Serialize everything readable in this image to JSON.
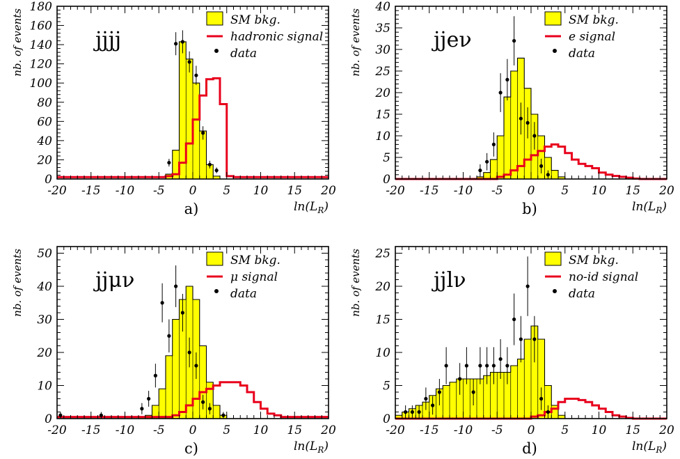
{
  "figure": {
    "colors": {
      "bkg_fill": "#ffff00",
      "signal": "#e8001c",
      "data": "#000000",
      "axes": "#000000"
    }
  },
  "chart_data": [
    {
      "type": "histogram",
      "panel_label": "a)",
      "channel_label": "jjjj",
      "xlabel": "ln(L_R)",
      "ylabel": "nb. of events",
      "xlim": [
        -20,
        20
      ],
      "ylim": [
        0,
        180
      ],
      "xticks": [
        -20,
        -15,
        -10,
        -5,
        0,
        5,
        10,
        15,
        20
      ],
      "yticks": [
        0,
        20,
        40,
        60,
        80,
        100,
        120,
        140,
        160,
        180
      ],
      "bin_edges": [
        -20,
        -19,
        -18,
        -17,
        -16,
        -15,
        -14,
        -13,
        -12,
        -11,
        -10,
        -9,
        -8,
        -7,
        -6,
        -5,
        -4,
        -3,
        -2,
        -1,
        0,
        1,
        2,
        3,
        4,
        5,
        6,
        7,
        8,
        9,
        10,
        11,
        12,
        13,
        14,
        15,
        16,
        17,
        18,
        19,
        20
      ],
      "legend": {
        "position": "top-right",
        "entries": [
          "SM bkg.",
          "hadronic signal",
          "data"
        ]
      },
      "grid": false,
      "series": [
        {
          "name": "SM bkg.",
          "kind": "filled-hist",
          "values": [
            0,
            0,
            0,
            0,
            0,
            0,
            0,
            0,
            0,
            0,
            0,
            0,
            0,
            0,
            0,
            0,
            5,
            30,
            143,
            125,
            100,
            50,
            15,
            3,
            0,
            0,
            0,
            0,
            0,
            0,
            0,
            0,
            0,
            0,
            0,
            0,
            0,
            0,
            0,
            0
          ]
        },
        {
          "name": "hadronic signal",
          "kind": "step-line",
          "values": [
            2,
            2,
            2,
            2,
            2,
            2,
            2,
            2,
            2,
            2,
            2,
            2,
            2,
            2,
            2,
            2,
            3,
            5,
            17,
            37,
            62,
            87,
            104,
            105,
            78,
            3,
            2,
            2,
            2,
            2,
            2,
            2,
            2,
            2,
            2,
            2,
            2,
            2,
            2,
            2
          ]
        },
        {
          "name": "data",
          "kind": "points",
          "points": [
            {
              "x": -3.5,
              "y": 17,
              "err": 4
            },
            {
              "x": -2.5,
              "y": 141,
              "err": 12
            },
            {
              "x": -1.5,
              "y": 143,
              "err": 12
            },
            {
              "x": -0.5,
              "y": 122,
              "err": 11
            },
            {
              "x": 0.5,
              "y": 108,
              "err": 10
            },
            {
              "x": 1.5,
              "y": 48,
              "err": 7
            },
            {
              "x": 2.5,
              "y": 15,
              "err": 4
            },
            {
              "x": 3.5,
              "y": 9,
              "err": 3
            }
          ]
        }
      ]
    },
    {
      "type": "histogram",
      "panel_label": "b)",
      "channel_label": "jjeν",
      "xlabel": "ln(L_R)",
      "ylabel": "nb. of events",
      "xlim": [
        -20,
        20
      ],
      "ylim": [
        0,
        40
      ],
      "xticks": [
        -20,
        -15,
        -10,
        -5,
        0,
        5,
        10,
        15,
        20
      ],
      "yticks": [
        0,
        5,
        10,
        15,
        20,
        25,
        30,
        35,
        40
      ],
      "bin_edges": [
        -20,
        -19,
        -18,
        -17,
        -16,
        -15,
        -14,
        -13,
        -12,
        -11,
        -10,
        -9,
        -8,
        -7,
        -6,
        -5,
        -4,
        -3,
        -2,
        -1,
        0,
        1,
        2,
        3,
        4,
        5,
        6,
        7,
        8,
        9,
        10,
        11,
        12,
        13,
        14,
        15,
        16,
        17,
        18,
        19,
        20
      ],
      "legend": {
        "position": "top-right",
        "entries": [
          "SM bkg.",
          "e signal",
          "data"
        ]
      },
      "grid": false,
      "series": [
        {
          "name": "SM bkg.",
          "kind": "filled-hist",
          "values": [
            0,
            0,
            0,
            0,
            0,
            0,
            0,
            0,
            0,
            0,
            0,
            0,
            0.5,
            1.5,
            4.5,
            10,
            19,
            25,
            28,
            21,
            15,
            10,
            5,
            2,
            0.5,
            0,
            0,
            0,
            0,
            0,
            0,
            0,
            0,
            0,
            0,
            0,
            0,
            0,
            0,
            0
          ]
        },
        {
          "name": "e signal",
          "kind": "step-line",
          "values": [
            0,
            0,
            0,
            0,
            0,
            0,
            0,
            0,
            0,
            0,
            0,
            0,
            0,
            0,
            0,
            0.5,
            1,
            2,
            3,
            4.5,
            5.5,
            6.5,
            7.5,
            8,
            7.5,
            6,
            4.5,
            3.5,
            3,
            2.5,
            1.5,
            1,
            0.7,
            0.5,
            0.3,
            0.1,
            0,
            0,
            0,
            0
          ]
        },
        {
          "name": "data",
          "kind": "points",
          "points": [
            {
              "x": -7.5,
              "y": 2,
              "err": 1.4
            },
            {
              "x": -6.5,
              "y": 4,
              "err": 2
            },
            {
              "x": -5.5,
              "y": 8,
              "err": 2.8
            },
            {
              "x": -4.5,
              "y": 20,
              "err": 4.5
            },
            {
              "x": -3.5,
              "y": 23,
              "err": 4.8
            },
            {
              "x": -2.5,
              "y": 32,
              "err": 5.7
            },
            {
              "x": -1.5,
              "y": 14,
              "err": 3.7
            },
            {
              "x": -0.5,
              "y": 13,
              "err": 3.6
            },
            {
              "x": 0.5,
              "y": 10,
              "err": 3.2
            },
            {
              "x": 1.5,
              "y": 3,
              "err": 1.7
            },
            {
              "x": 2.5,
              "y": 1,
              "err": 1
            }
          ]
        }
      ]
    },
    {
      "type": "histogram",
      "panel_label": "c)",
      "channel_label": "jjμν",
      "xlabel": "ln(L_R)",
      "ylabel": "nb. of events",
      "xlim": [
        -20,
        20
      ],
      "ylim": [
        0,
        52
      ],
      "xticks": [
        -20,
        -15,
        -10,
        -5,
        0,
        5,
        10,
        15,
        20
      ],
      "yticks": [
        0,
        10,
        20,
        30,
        40,
        50
      ],
      "bin_edges": [
        -20,
        -19,
        -18,
        -17,
        -16,
        -15,
        -14,
        -13,
        -12,
        -11,
        -10,
        -9,
        -8,
        -7,
        -6,
        -5,
        -4,
        -3,
        -2,
        -1,
        0,
        1,
        2,
        3,
        4,
        5,
        6,
        7,
        8,
        9,
        10,
        11,
        12,
        13,
        14,
        15,
        16,
        17,
        18,
        19,
        20
      ],
      "legend": {
        "position": "top-right",
        "entries": [
          "SM bkg.",
          "μ signal",
          "data"
        ]
      },
      "grid": false,
      "series": [
        {
          "name": "SM bkg.",
          "kind": "filled-hist",
          "values": [
            0,
            0,
            0,
            0,
            0,
            0,
            0,
            0,
            0,
            0,
            0,
            0,
            0.5,
            1,
            4,
            9,
            19,
            30,
            36,
            40,
            36,
            22,
            11,
            4,
            1,
            0,
            0,
            0,
            0,
            0,
            0,
            0,
            0,
            0,
            0,
            0,
            0,
            0,
            0,
            0
          ]
        },
        {
          "name": "μ signal",
          "kind": "step-line",
          "values": [
            0.5,
            0.5,
            0.5,
            0.5,
            0.5,
            0.5,
            0.5,
            0.5,
            0.5,
            0.5,
            0.5,
            0.5,
            0.5,
            0.5,
            0.5,
            0.5,
            0.5,
            1,
            2,
            4,
            6,
            8,
            9,
            10,
            11,
            11,
            11,
            10,
            8,
            5,
            3,
            1.5,
            1,
            0.5,
            0.5,
            0.5,
            0.5,
            0.5,
            0.5,
            0.5
          ]
        },
        {
          "name": "data",
          "kind": "points",
          "points": [
            {
              "x": -19.5,
              "y": 1,
              "err": 1
            },
            {
              "x": -13.5,
              "y": 1,
              "err": 1
            },
            {
              "x": -7.5,
              "y": 3,
              "err": 1.7
            },
            {
              "x": -6.5,
              "y": 6,
              "err": 2.4
            },
            {
              "x": -5.5,
              "y": 13,
              "err": 3.6
            },
            {
              "x": -4.5,
              "y": 35,
              "err": 5.9
            },
            {
              "x": -3.5,
              "y": 25,
              "err": 5
            },
            {
              "x": -2.5,
              "y": 40,
              "err": 6.3
            },
            {
              "x": -1.5,
              "y": 32,
              "err": 5.7
            },
            {
              "x": -0.5,
              "y": 20,
              "err": 4.5
            },
            {
              "x": 0.5,
              "y": 16,
              "err": 4
            },
            {
              "x": 1.5,
              "y": 5,
              "err": 2.2
            },
            {
              "x": 2.5,
              "y": 3,
              "err": 1.7
            },
            {
              "x": 4.5,
              "y": 1,
              "err": 1
            }
          ]
        }
      ]
    },
    {
      "type": "histogram",
      "panel_label": "d)",
      "channel_label": "jjlν",
      "xlabel": "ln(L_R)",
      "ylabel": "nb. of events",
      "xlim": [
        -20,
        20
      ],
      "ylim": [
        0,
        26
      ],
      "xticks": [
        -20,
        -15,
        -10,
        -5,
        0,
        5,
        10,
        15,
        20
      ],
      "yticks": [
        0,
        5,
        10,
        15,
        20,
        25
      ],
      "bin_edges": [
        -20,
        -19,
        -18,
        -17,
        -16,
        -15,
        -14,
        -13,
        -12,
        -11,
        -10,
        -9,
        -8,
        -7,
        -6,
        -5,
        -4,
        -3,
        -2,
        -1,
        0,
        1,
        2,
        3,
        4,
        5,
        6,
        7,
        8,
        9,
        10,
        11,
        12,
        13,
        14,
        15,
        16,
        17,
        18,
        19,
        20
      ],
      "legend": {
        "position": "top-right",
        "entries": [
          "SM bkg.",
          "no-id signal",
          "data"
        ]
      },
      "grid": false,
      "series": [
        {
          "name": "SM bkg.",
          "kind": "filled-hist",
          "values": [
            0.5,
            1,
            1.5,
            2,
            2.5,
            3.5,
            4.5,
            5,
            5.5,
            6,
            6,
            6,
            6,
            6.5,
            7,
            7,
            7,
            8,
            9,
            12,
            14,
            12,
            5,
            2,
            0.5,
            0,
            0,
            0,
            0,
            0,
            0,
            0,
            0,
            0,
            0,
            0,
            0,
            0,
            0,
            0
          ]
        },
        {
          "name": "no-id signal",
          "kind": "step-line",
          "values": [
            0,
            0,
            0,
            0,
            0,
            0,
            0,
            0,
            0,
            0,
            0,
            0,
            0,
            0,
            0,
            0,
            0,
            0,
            0,
            0,
            0.3,
            0.5,
            1,
            1.5,
            2.5,
            3,
            3,
            2.8,
            2.5,
            2,
            1.5,
            1,
            0.5,
            0.3,
            0.1,
            0,
            0,
            0,
            0,
            0
          ]
        },
        {
          "name": "data",
          "kind": "points",
          "points": [
            {
              "x": -18.5,
              "y": 1,
              "err": 1
            },
            {
              "x": -17.5,
              "y": 1,
              "err": 1
            },
            {
              "x": -16.5,
              "y": 1,
              "err": 1
            },
            {
              "x": -15.5,
              "y": 3,
              "err": 1.7
            },
            {
              "x": -14.5,
              "y": 2,
              "err": 1.4
            },
            {
              "x": -13.5,
              "y": 4,
              "err": 2
            },
            {
              "x": -12.5,
              "y": 8,
              "err": 2.8
            },
            {
              "x": -10.5,
              "y": 6,
              "err": 2.4
            },
            {
              "x": -9.5,
              "y": 8,
              "err": 2.8
            },
            {
              "x": -8.5,
              "y": 4,
              "err": 2
            },
            {
              "x": -7.5,
              "y": 8,
              "err": 2.8
            },
            {
              "x": -6.5,
              "y": 8,
              "err": 2.8
            },
            {
              "x": -5.5,
              "y": 8,
              "err": 2.8
            },
            {
              "x": -4.5,
              "y": 9,
              "err": 3
            },
            {
              "x": -3.5,
              "y": 8,
              "err": 2.8
            },
            {
              "x": -2.5,
              "y": 15,
              "err": 3.9
            },
            {
              "x": -1.5,
              "y": 12,
              "err": 3.5
            },
            {
              "x": -0.5,
              "y": 20,
              "err": 4.5
            },
            {
              "x": 0.5,
              "y": 12,
              "err": 3.5
            },
            {
              "x": 1.5,
              "y": 3,
              "err": 1.7
            },
            {
              "x": 2.5,
              "y": 1,
              "err": 1
            }
          ]
        }
      ]
    }
  ]
}
